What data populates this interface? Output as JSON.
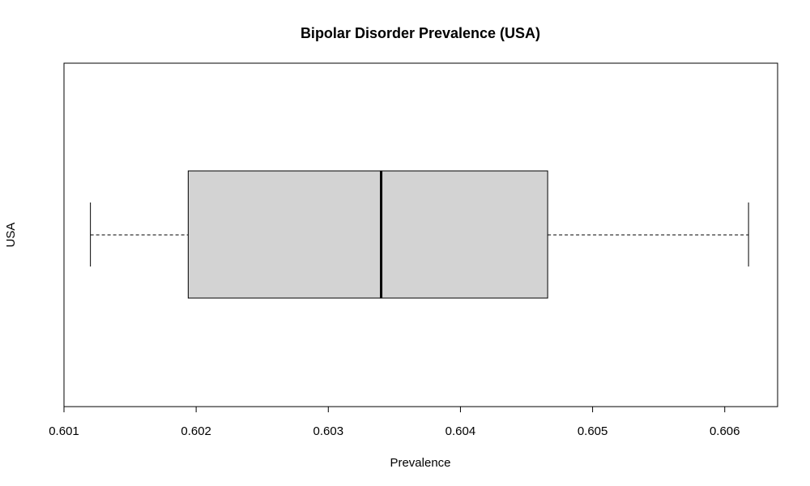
{
  "chart_data": {
    "type": "boxplot",
    "title": "Bipolar Disorder Prevalence (USA)",
    "xlabel": "Prevalence",
    "ylabel": "USA",
    "xlim": [
      0.601,
      0.6064
    ],
    "x_ticks": [
      0.601,
      0.602,
      0.603,
      0.604,
      0.605,
      0.606
    ],
    "x_tick_labels": [
      "0.601",
      "0.602",
      "0.603",
      "0.604",
      "0.605",
      "0.606"
    ],
    "orientation": "horizontal",
    "grid": false,
    "box": {
      "min": 0.6012,
      "q1": 0.60194,
      "median": 0.6034,
      "q3": 0.60466,
      "max": 0.60618
    },
    "colors": {
      "box_fill": "#d3d3d3",
      "stroke": "#000000",
      "background": "#ffffff"
    }
  }
}
